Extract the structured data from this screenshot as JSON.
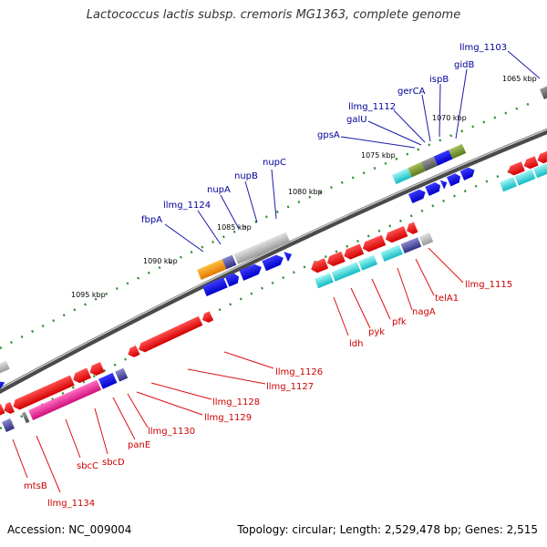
{
  "title": "Lactococcus lactis subsp. cremoris MG1363, complete genome",
  "footer": {
    "accession": "Accession: NC_009004",
    "summary": "Topology: circular; Length: 2,529,478 bp; Genes: 2,515"
  },
  "kbp_labels": [
    "1065 kbp",
    "1070 kbp",
    "1075 kbp",
    "1080 kbp",
    "1085 kbp",
    "1090 kbp",
    "1095 kbp"
  ],
  "genes_top": [
    "llmg_1103",
    "gidB",
    "ispB",
    "gerCA",
    "llmg_1112",
    "galU",
    "gpsA",
    "nupC",
    "nupB",
    "nupA",
    "llmg_1124",
    "fbpA"
  ],
  "genes_bottom": [
    "llmg_1115",
    "telA1",
    "nagA",
    "pfk",
    "pyk",
    "ldh",
    "llmg_1126",
    "llmg_1127",
    "llmg_1128",
    "llmg_1129",
    "llmg_1130",
    "panE",
    "sbcD",
    "sbcC",
    "mtsB",
    "llmg_1134"
  ],
  "colors": {
    "top_label": "#00009a",
    "bottom_label": "#cc0000",
    "leader_top": "#1a1aaa",
    "leader_bottom": "#dd1111",
    "backbone": "#7a7a7a",
    "tick": "#2f8f2f"
  }
}
